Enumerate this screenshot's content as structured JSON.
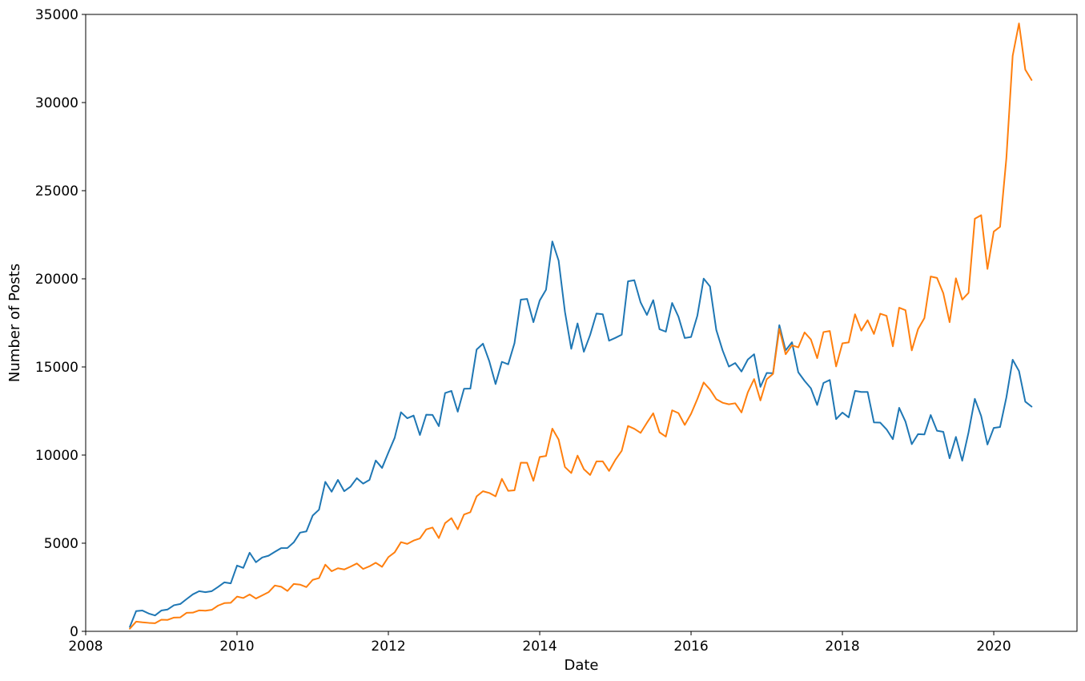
{
  "chart_data": {
    "type": "line",
    "title": "",
    "xlabel": "Date",
    "ylabel": "Number of Posts",
    "xlim": [
      2008.0,
      2021.1
    ],
    "ylim": [
      0,
      35000
    ],
    "x_ticks": [
      2008,
      2010,
      2012,
      2014,
      2016,
      2018,
      2020
    ],
    "y_ticks": [
      0,
      5000,
      10000,
      15000,
      20000,
      25000,
      30000,
      35000
    ],
    "grid": false,
    "legend": "none",
    "x_start": "2008-08",
    "x_step": "1 month",
    "series": [
      {
        "color": "#1f77b4",
        "values": [
          250,
          1150,
          1180,
          1010,
          900,
          1180,
          1240,
          1480,
          1550,
          1830,
          2100,
          2280,
          2220,
          2280,
          2520,
          2780,
          2720,
          3730,
          3600,
          4460,
          3920,
          4190,
          4290,
          4510,
          4720,
          4730,
          5050,
          5600,
          5670,
          6570,
          6900,
          8480,
          7920,
          8590,
          7950,
          8210,
          8690,
          8380,
          8590,
          9690,
          9270,
          10140,
          10980,
          12430,
          12090,
          12240,
          11140,
          12290,
          12280,
          11640,
          13520,
          13640,
          12460,
          13760,
          13770,
          15990,
          16320,
          15330,
          14030,
          15290,
          15150,
          16350,
          18820,
          18860,
          17540,
          18770,
          19380,
          22120,
          21030,
          18130,
          16030,
          17470,
          15860,
          16820,
          18030,
          17990,
          16490,
          16650,
          16830,
          19860,
          19920,
          18660,
          17950,
          18790,
          17140,
          17000,
          18630,
          17850,
          16640,
          16700,
          17910,
          20010,
          19570,
          17100,
          15940,
          15020,
          15220,
          14740,
          15420,
          15720,
          13870,
          14660,
          14640,
          17370,
          15940,
          16400,
          14700,
          14210,
          13790,
          12840,
          14090,
          14260,
          12040,
          12410,
          12140,
          13640,
          13580,
          13580,
          11850,
          11840,
          11460,
          10900,
          12680,
          11900,
          10620,
          11190,
          11170,
          12270,
          11380,
          11320,
          9820,
          11030,
          9680,
          11280,
          13190,
          12220,
          10600,
          11540,
          11590,
          13270,
          15410,
          14770,
          13030,
          12750
        ]
      },
      {
        "color": "#ff7f0e",
        "values": [
          150,
          550,
          510,
          480,
          460,
          660,
          650,
          780,
          790,
          1050,
          1060,
          1190,
          1170,
          1220,
          1460,
          1600,
          1620,
          1970,
          1890,
          2090,
          1860,
          2040,
          2220,
          2600,
          2530,
          2290,
          2690,
          2650,
          2510,
          2920,
          3020,
          3780,
          3410,
          3580,
          3510,
          3670,
          3850,
          3540,
          3690,
          3890,
          3660,
          4210,
          4480,
          5060,
          4960,
          5150,
          5270,
          5780,
          5890,
          5290,
          6140,
          6420,
          5790,
          6630,
          6760,
          7660,
          7950,
          7850,
          7660,
          8650,
          7970,
          8000,
          9570,
          9560,
          8540,
          9890,
          9950,
          11500,
          10880,
          9320,
          8980,
          9970,
          9200,
          8870,
          9640,
          9640,
          9100,
          9730,
          10240,
          11650,
          11490,
          11260,
          11830,
          12370,
          11290,
          11050,
          12540,
          12380,
          11710,
          12340,
          13180,
          14120,
          13720,
          13170,
          12970,
          12880,
          12940,
          12420,
          13560,
          14310,
          13100,
          14300,
          14610,
          17160,
          15720,
          16230,
          16110,
          16960,
          16560,
          15500,
          16980,
          17040,
          15030,
          16340,
          16390,
          17990,
          17060,
          17650,
          16870,
          18020,
          17900,
          16170,
          18360,
          18220,
          15940,
          17150,
          17770,
          20130,
          20050,
          19180,
          17540,
          20030,
          18820,
          19200,
          23410,
          23610,
          20560,
          22680,
          22950,
          26840,
          32650,
          34490,
          31870,
          31280
        ]
      }
    ]
  }
}
